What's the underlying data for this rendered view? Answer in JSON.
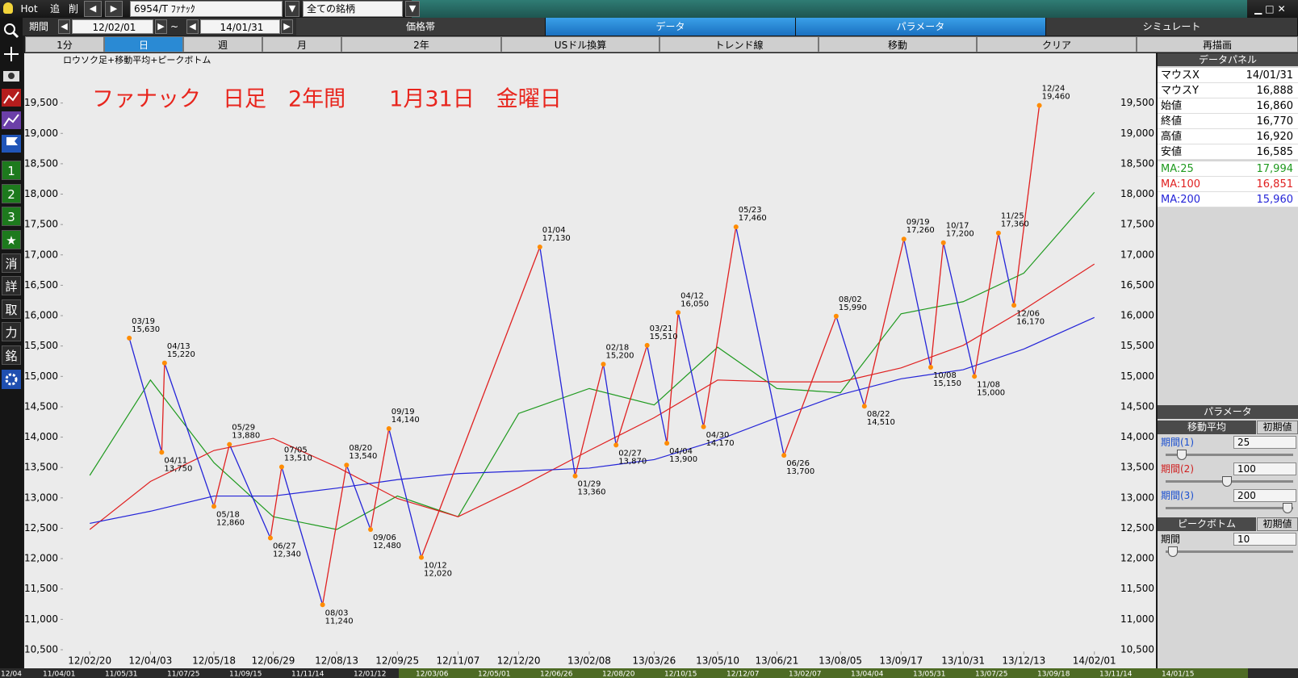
{
  "toolbar": {
    "buttons": [
      "Hot",
      "追",
      "削"
    ],
    "symbol": "6954/T ﾌｧﾅｯｸ",
    "universe": "全ての銘柄"
  },
  "period": {
    "label": "期間",
    "tilde": "~"
  },
  "tabs": [
    "価格帯",
    "データ",
    "パラメータ",
    "シミュレート"
  ],
  "active_tabs": [
    1,
    2
  ],
  "buttons": [
    "1分",
    "日",
    "週",
    "月",
    "2年",
    "USドル換算",
    "トレンド線",
    "移動",
    "クリア",
    "再描画"
  ],
  "active_button": 1,
  "side_tools": [
    "1",
    "2",
    "3",
    "消",
    "詳",
    "取",
    "力",
    "銘"
  ],
  "chart_data": {
    "type": "line",
    "title": "ロウソク足+移動平均+ピークボトム",
    "annotation": "ファナック　日足　2年間　　1月31日　金曜日",
    "xlim": [
      "12/02/01",
      "14/01/31"
    ],
    "xticks": [
      "12/02/20",
      "12/04/03",
      "12/05/18",
      "12/06/29",
      "12/08/13",
      "12/09/25",
      "12/11/07",
      "12/12/20",
      "13/02/08",
      "13/03/26",
      "13/05/10",
      "13/06/21",
      "13/08/05",
      "13/09/17",
      "13/10/31",
      "13/12/13",
      "14/02/01"
    ],
    "ylim": [
      10500,
      20000
    ],
    "yticks": [
      {
        "value": 10500,
        "label": "10,500"
      },
      {
        "value": 11000,
        "label": "11,000"
      },
      {
        "value": 11500,
        "label": "11,500"
      },
      {
        "value": 12000,
        "label": "12,000"
      },
      {
        "value": 12500,
        "label": "12,500"
      },
      {
        "value": 13000,
        "label": "13,000"
      },
      {
        "value": 13500,
        "label": "13,500"
      },
      {
        "value": 14000,
        "label": "14,000"
      },
      {
        "value": 14500,
        "label": "14,500"
      },
      {
        "value": 15000,
        "label": "15,000"
      },
      {
        "value": 15500,
        "label": "15,500"
      },
      {
        "value": 16000,
        "label": "16,000"
      },
      {
        "value": 16500,
        "label": "16,500"
      },
      {
        "value": 17000,
        "label": "17,000"
      },
      {
        "value": 17500,
        "label": "17,500"
      },
      {
        "value": 18000,
        "label": "18,000"
      },
      {
        "value": 18500,
        "label": "18,500"
      },
      {
        "value": 19000,
        "label": "19,000"
      },
      {
        "value": 19500,
        "label": "19,500"
      }
    ],
    "series": [
      {
        "name": "MA:25",
        "color": "#1f9a1f",
        "values": [
          13370,
          14940,
          13580,
          12690,
          12480,
          13030,
          12690,
          14390,
          14800,
          14530,
          15480,
          14800,
          14730,
          16030,
          16230,
          16700,
          18030
        ]
      },
      {
        "name": "MA:100",
        "color": "#e02020",
        "values": [
          12480,
          13270,
          13780,
          13980,
          13510,
          12990,
          12690,
          13170,
          13780,
          14320,
          14940,
          14910,
          14910,
          15140,
          15510,
          16100,
          16850
        ]
      },
      {
        "name": "MA:200",
        "color": "#2424d8",
        "values": [
          12580,
          12780,
          13030,
          13030,
          13160,
          13300,
          13400,
          13440,
          13490,
          13630,
          13950,
          14320,
          14700,
          14960,
          15110,
          15450,
          15970
        ]
      }
    ],
    "peaks": {
      "color": "#ff8c00",
      "labels": [
        "03/19",
        "04/11",
        "04/13",
        "05/18",
        "05/29",
        "06/27",
        "07/05",
        "08/03",
        "08/20",
        "09/06",
        "09/19",
        "10/12",
        "01/04",
        "01/29",
        "02/18",
        "02/27",
        "03/21",
        "04/04",
        "04/12",
        "04/30",
        "05/23",
        "06/26",
        "08/02",
        "08/22",
        "09/19",
        "10/08",
        "10/17",
        "11/08",
        "11/25",
        "12/06",
        "12/24"
      ],
      "values": [
        15630,
        13750,
        15220,
        12860,
        13880,
        12340,
        13510,
        11240,
        13540,
        12480,
        14140,
        12020,
        17130,
        13360,
        15200,
        13870,
        15510,
        13900,
        16050,
        14170,
        17460,
        13700,
        15990,
        14510,
        17260,
        15150,
        17200,
        15000,
        17360,
        16170,
        19460
      ],
      "value_labels": [
        "15,630",
        "13,750",
        "15,220",
        "12,860",
        "13,880",
        "12,340",
        "13,510",
        "11,240",
        "13,540",
        "12,480",
        "14,140",
        "12,020",
        "17,130",
        "13,360",
        "15,200",
        "13,870",
        "15,510",
        "13,900",
        "16,050",
        "14,170",
        "17,460",
        "13,700",
        "15,990",
        "14,510",
        "17,260",
        "15,150",
        "17,200",
        "15,000",
        "17,360",
        "16,170",
        "19,460"
      ]
    }
  },
  "data_panel": {
    "title": "データパネル",
    "rows": [
      {
        "label": "マウスX",
        "value": "14/01/31"
      },
      {
        "label": "マウスY",
        "value": "16,888"
      },
      {
        "label": "始値",
        "value": "16,860"
      },
      {
        "label": "終値",
        "value": "16,770"
      },
      {
        "label": "高値",
        "value": "16,920"
      },
      {
        "label": "安値",
        "value": "16,585"
      }
    ],
    "ma_values": [
      "17,994",
      "16,851",
      "15,960"
    ]
  },
  "parameters": {
    "title": "パラメータ",
    "sections": [
      {
        "title": "移動平均",
        "reset": "初期値",
        "items": [
          {
            "label": "期間(1)",
            "value": 25,
            "color": "#1a4fd0"
          },
          {
            "label": "期間(2)",
            "value": 100,
            "color": "#d02020"
          },
          {
            "label": "期間(3)",
            "value": 200,
            "color": "#1a4fd0"
          }
        ]
      },
      {
        "title": "ピークボトム",
        "reset": "初期値",
        "items": [
          {
            "label": "期間",
            "value": 10,
            "color": "#000000"
          }
        ]
      }
    ]
  },
  "timeline": [
    "12/04",
    "11/04/01",
    "11/05/31",
    "11/07/25",
    "11/09/15",
    "11/11/14",
    "12/01/12",
    "12/03/06",
    "12/05/01",
    "12/06/26",
    "12/08/20",
    "12/10/15",
    "12/12/07",
    "13/02/07",
    "13/04/04",
    "13/05/31",
    "13/07/25",
    "13/09/18",
    "13/11/14",
    "14/01/15"
  ]
}
